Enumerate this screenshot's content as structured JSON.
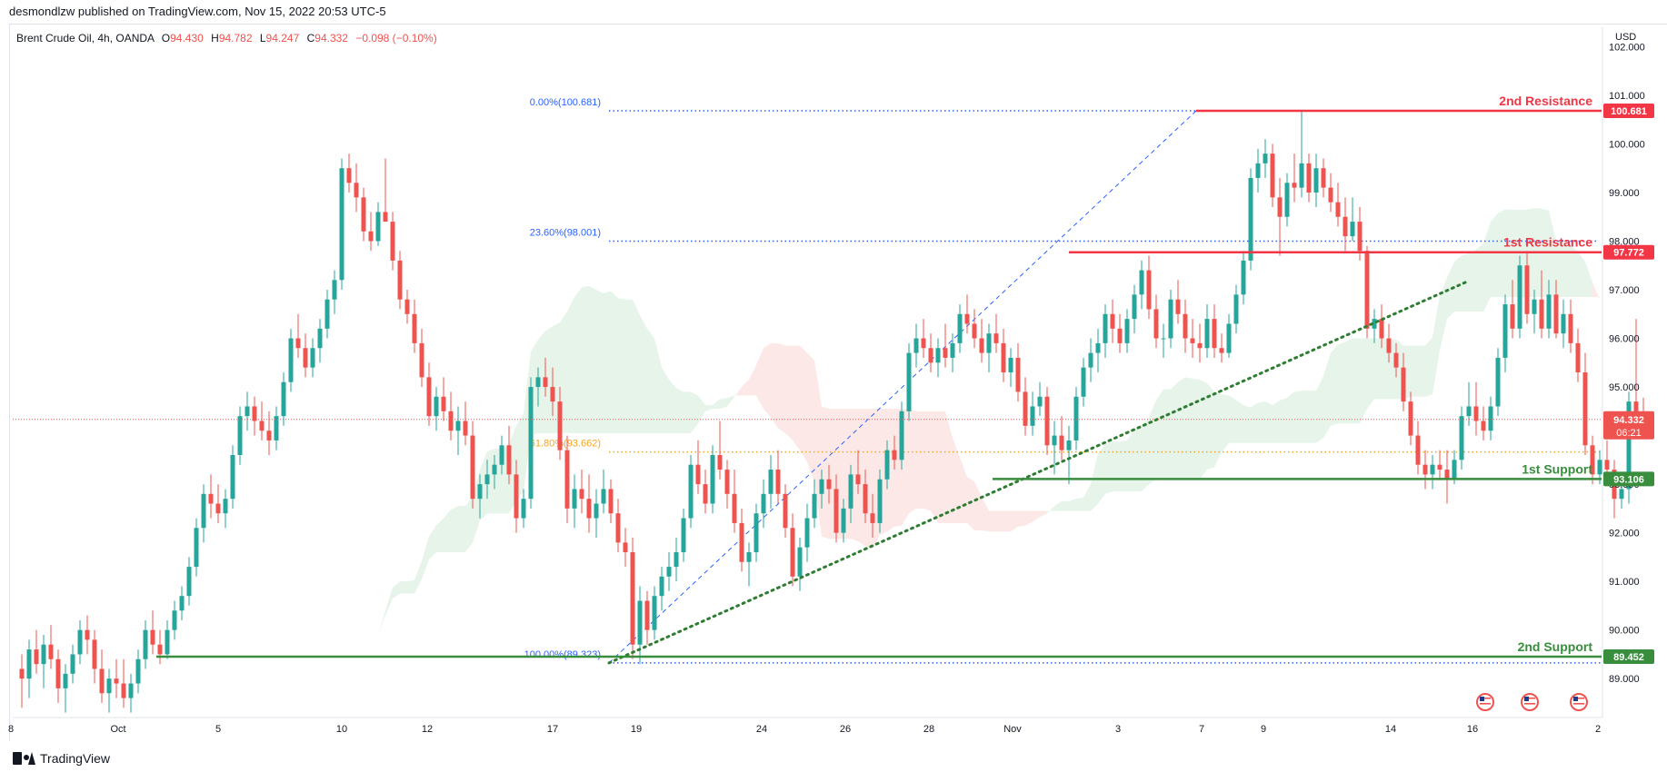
{
  "header": {
    "publisher": "desmondlzw published on TradingView.com, Nov 15, 2022 20:53 UTC-5"
  },
  "legend": {
    "symbol": "Brent Crude Oil, 4h, OANDA",
    "o_label": "O",
    "o": "94.430",
    "h_label": "H",
    "h": "94.782",
    "l_label": "L",
    "l": "94.247",
    "c_label": "C",
    "c": "94.332",
    "change": "−0.098 (−0.10%)"
  },
  "footer": {
    "brand": "TradingView"
  },
  "colors": {
    "up": "#26a69a",
    "down": "#ef5350",
    "resistance": "#f23645",
    "support": "#388e3c",
    "fib": "#2962ff",
    "fib_golden": "#f5a623",
    "trend": "#2e7d32",
    "cloud_green": "#e6f4ea",
    "cloud_red": "#fde8e8",
    "price_line": "#ef5350"
  },
  "chart_data": {
    "type": "candlestick",
    "currency": "USD",
    "ylim": [
      88.2,
      102.4
    ],
    "y_ticks": [
      "89.000",
      "90.000",
      "91.000",
      "92.000",
      "93.000",
      "94.000",
      "95.000",
      "96.000",
      "97.000",
      "98.000",
      "99.000",
      "100.000",
      "101.000",
      "102.000"
    ],
    "x_ticks": [
      "8",
      "Oct",
      "5",
      "10",
      "12",
      "17",
      "19",
      "24",
      "26",
      "28",
      "Nov",
      "3",
      "7",
      "9",
      "14",
      "16",
      "2"
    ],
    "current_price": "94.332",
    "countdown": "06:21",
    "levels": [
      {
        "name": "2nd Resistance",
        "value": 100.681,
        "label": "100.681",
        "kind": "resistance"
      },
      {
        "name": "1st Resistance",
        "value": 97.772,
        "label": "97.772",
        "kind": "resistance"
      },
      {
        "name": "1st Support",
        "value": 93.106,
        "label": "93.106",
        "kind": "support"
      },
      {
        "name": "2nd Support",
        "value": 89.452,
        "label": "89.452",
        "kind": "support"
      }
    ],
    "fib_levels": [
      {
        "label": "0.00%(100.681)",
        "value": 100.681
      },
      {
        "label": "23.60%(98.001)",
        "value": 98.001
      },
      {
        "label": "61.80%(93.662)",
        "value": 93.662
      },
      {
        "label": "100.00%(89.323)",
        "value": 89.323
      }
    ],
    "candles": [
      [
        89.2,
        89.5,
        88.4,
        89.0
      ],
      [
        89.0,
        89.8,
        88.6,
        89.6
      ],
      [
        89.6,
        90.0,
        89.1,
        89.3
      ],
      [
        89.3,
        89.9,
        88.8,
        89.7
      ],
      [
        89.7,
        90.1,
        89.2,
        89.4
      ],
      [
        89.4,
        89.6,
        88.5,
        88.8
      ],
      [
        88.8,
        89.3,
        88.3,
        89.1
      ],
      [
        89.1,
        89.7,
        88.9,
        89.5
      ],
      [
        89.5,
        90.2,
        89.3,
        90.0
      ],
      [
        90.0,
        90.3,
        89.5,
        89.8
      ],
      [
        89.8,
        90.0,
        88.9,
        89.2
      ],
      [
        89.2,
        89.6,
        88.5,
        88.7
      ],
      [
        88.7,
        89.2,
        88.3,
        89.0
      ],
      [
        89.0,
        89.4,
        88.6,
        88.9
      ],
      [
        88.9,
        89.4,
        88.4,
        88.6
      ],
      [
        88.6,
        89.1,
        88.3,
        88.9
      ],
      [
        88.9,
        89.6,
        88.7,
        89.4
      ],
      [
        89.4,
        90.2,
        89.2,
        90.0
      ],
      [
        90.0,
        90.4,
        89.5,
        89.7
      ],
      [
        89.7,
        90.0,
        89.3,
        89.5
      ],
      [
        89.5,
        90.2,
        89.4,
        90.0
      ],
      [
        90.0,
        90.6,
        89.8,
        90.4
      ],
      [
        90.4,
        90.9,
        90.2,
        90.7
      ],
      [
        90.7,
        91.5,
        90.5,
        91.3
      ],
      [
        91.3,
        92.3,
        91.1,
        92.1
      ],
      [
        92.1,
        93.0,
        91.8,
        92.8
      ],
      [
        92.8,
        93.2,
        92.3,
        92.6
      ],
      [
        92.6,
        93.0,
        92.2,
        92.4
      ],
      [
        92.4,
        92.9,
        92.1,
        92.7
      ],
      [
        92.7,
        93.8,
        92.5,
        93.6
      ],
      [
        93.6,
        94.6,
        93.4,
        94.4
      ],
      [
        94.4,
        94.9,
        94.1,
        94.6
      ],
      [
        94.6,
        94.8,
        94.0,
        94.3
      ],
      [
        94.3,
        94.7,
        93.9,
        94.1
      ],
      [
        94.1,
        94.5,
        93.6,
        93.9
      ],
      [
        93.9,
        94.6,
        93.7,
        94.4
      ],
      [
        94.4,
        95.3,
        94.2,
        95.1
      ],
      [
        95.1,
        96.2,
        94.9,
        96.0
      ],
      [
        96.0,
        96.5,
        95.6,
        95.8
      ],
      [
        95.8,
        96.1,
        95.2,
        95.4
      ],
      [
        95.4,
        96.0,
        95.2,
        95.8
      ],
      [
        95.8,
        96.4,
        95.5,
        96.2
      ],
      [
        96.2,
        97.0,
        96.0,
        96.8
      ],
      [
        96.8,
        97.4,
        96.5,
        97.2
      ],
      [
        97.2,
        99.7,
        97.0,
        99.5
      ],
      [
        99.5,
        99.8,
        99.0,
        99.2
      ],
      [
        99.2,
        99.6,
        98.6,
        98.9
      ],
      [
        98.9,
        99.1,
        98.0,
        98.2
      ],
      [
        98.2,
        98.6,
        97.8,
        98.0
      ],
      [
        98.0,
        98.8,
        97.9,
        98.6
      ],
      [
        98.6,
        99.7,
        98.4,
        98.4
      ],
      [
        98.4,
        98.6,
        97.4,
        97.6
      ],
      [
        97.6,
        97.8,
        96.6,
        96.8
      ],
      [
        96.8,
        97.0,
        96.3,
        96.5
      ],
      [
        96.5,
        96.8,
        95.7,
        95.9
      ],
      [
        95.9,
        96.2,
        95.0,
        95.2
      ],
      [
        95.2,
        95.5,
        94.2,
        94.4
      ],
      [
        94.4,
        95.0,
        94.1,
        94.8
      ],
      [
        94.8,
        95.2,
        94.3,
        94.5
      ],
      [
        94.5,
        94.9,
        93.9,
        94.1
      ],
      [
        94.1,
        94.6,
        93.6,
        94.3
      ],
      [
        94.3,
        94.7,
        93.8,
        94.0
      ],
      [
        94.0,
        94.3,
        92.5,
        92.7
      ],
      [
        92.7,
        93.2,
        92.3,
        93.0
      ],
      [
        93.0,
        93.5,
        92.7,
        93.2
      ],
      [
        93.2,
        93.6,
        92.9,
        93.4
      ],
      [
        93.4,
        94.0,
        93.2,
        93.8
      ],
      [
        93.8,
        94.2,
        93.0,
        93.2
      ],
      [
        93.2,
        93.5,
        92.0,
        92.3
      ],
      [
        92.3,
        92.9,
        92.1,
        92.7
      ],
      [
        92.7,
        95.2,
        92.5,
        95.0
      ],
      [
        95.0,
        95.4,
        94.6,
        95.2
      ],
      [
        95.2,
        95.6,
        94.8,
        95.0
      ],
      [
        95.0,
        95.4,
        94.4,
        94.7
      ],
      [
        94.7,
        95.0,
        93.5,
        93.7
      ],
      [
        93.7,
        94.0,
        92.2,
        92.5
      ],
      [
        92.5,
        93.2,
        92.1,
        92.9
      ],
      [
        92.9,
        93.3,
        92.4,
        92.7
      ],
      [
        92.7,
        93.2,
        92.0,
        92.3
      ],
      [
        92.3,
        92.9,
        91.9,
        92.6
      ],
      [
        92.6,
        93.3,
        92.4,
        92.9
      ],
      [
        92.9,
        93.1,
        92.2,
        92.4
      ],
      [
        92.4,
        92.7,
        91.6,
        91.8
      ],
      [
        91.8,
        92.1,
        91.3,
        91.6
      ],
      [
        91.6,
        91.9,
        89.4,
        89.7
      ],
      [
        89.7,
        90.9,
        89.3,
        90.6
      ],
      [
        90.6,
        90.8,
        89.7,
        90.0
      ],
      [
        90.0,
        90.9,
        89.8,
        90.7
      ],
      [
        90.7,
        91.3,
        90.4,
        91.1
      ],
      [
        91.1,
        91.6,
        90.8,
        91.3
      ],
      [
        91.3,
        91.9,
        91.0,
        91.6
      ],
      [
        91.6,
        92.5,
        91.4,
        92.3
      ],
      [
        92.3,
        93.6,
        92.1,
        93.4
      ],
      [
        93.4,
        93.9,
        92.8,
        93.0
      ],
      [
        93.0,
        93.3,
        92.4,
        92.6
      ],
      [
        92.6,
        93.8,
        92.4,
        93.6
      ],
      [
        93.6,
        94.3,
        93.1,
        93.3
      ],
      [
        93.3,
        93.5,
        92.5,
        92.8
      ],
      [
        92.8,
        93.3,
        92.0,
        92.2
      ],
      [
        92.2,
        92.5,
        91.2,
        91.4
      ],
      [
        91.4,
        91.8,
        90.9,
        91.6
      ],
      [
        91.6,
        92.6,
        91.4,
        92.4
      ],
      [
        92.4,
        93.1,
        92.1,
        92.8
      ],
      [
        92.8,
        93.6,
        92.5,
        93.3
      ],
      [
        93.3,
        93.7,
        92.6,
        92.8
      ],
      [
        92.8,
        93.0,
        91.9,
        92.1
      ],
      [
        92.1,
        92.4,
        90.9,
        91.1
      ],
      [
        91.1,
        91.9,
        90.8,
        91.7
      ],
      [
        91.7,
        92.6,
        91.4,
        92.3
      ],
      [
        92.3,
        93.1,
        92.1,
        92.8
      ],
      [
        92.8,
        93.3,
        92.5,
        93.1
      ],
      [
        93.1,
        93.4,
        92.6,
        92.9
      ],
      [
        92.9,
        93.2,
        91.8,
        92.0
      ],
      [
        92.0,
        92.7,
        91.8,
        92.5
      ],
      [
        92.5,
        93.4,
        92.2,
        93.2
      ],
      [
        93.2,
        93.7,
        92.8,
        93.0
      ],
      [
        93.0,
        93.3,
        92.2,
        92.4
      ],
      [
        92.4,
        92.8,
        91.9,
        92.2
      ],
      [
        92.2,
        93.3,
        92.0,
        93.1
      ],
      [
        93.1,
        93.9,
        92.9,
        93.7
      ],
      [
        93.7,
        94.0,
        93.3,
        93.5
      ],
      [
        93.5,
        94.7,
        93.3,
        94.5
      ],
      [
        94.5,
        95.9,
        94.3,
        95.7
      ],
      [
        95.7,
        96.3,
        95.4,
        96.0
      ],
      [
        96.0,
        96.4,
        95.6,
        95.8
      ],
      [
        95.8,
        96.1,
        95.3,
        95.5
      ],
      [
        95.5,
        96.0,
        95.2,
        95.8
      ],
      [
        95.8,
        96.3,
        95.4,
        95.6
      ],
      [
        95.6,
        96.1,
        95.3,
        95.9
      ],
      [
        95.9,
        96.7,
        95.7,
        96.5
      ],
      [
        96.5,
        96.9,
        96.1,
        96.3
      ],
      [
        96.3,
        96.6,
        95.8,
        96.0
      ],
      [
        96.0,
        96.4,
        95.5,
        95.7
      ],
      [
        95.7,
        96.3,
        95.3,
        96.1
      ],
      [
        96.1,
        96.5,
        95.7,
        95.9
      ],
      [
        95.9,
        96.2,
        95.1,
        95.3
      ],
      [
        95.3,
        95.8,
        95.0,
        95.6
      ],
      [
        95.6,
        95.9,
        94.7,
        94.9
      ],
      [
        94.9,
        95.2,
        94.0,
        94.2
      ],
      [
        94.2,
        94.9,
        94.0,
        94.6
      ],
      [
        94.6,
        95.1,
        94.4,
        94.8
      ],
      [
        94.8,
        95.0,
        93.6,
        93.8
      ],
      [
        93.8,
        94.3,
        93.2,
        94.0
      ],
      [
        94.0,
        94.4,
        93.5,
        93.7
      ],
      [
        93.7,
        94.2,
        93.0,
        93.9
      ],
      [
        93.9,
        95.0,
        93.7,
        94.8
      ],
      [
        94.8,
        95.6,
        94.6,
        95.4
      ],
      [
        95.4,
        96.0,
        95.1,
        95.7
      ],
      [
        95.7,
        96.2,
        95.3,
        95.9
      ],
      [
        95.9,
        96.7,
        95.6,
        96.5
      ],
      [
        96.5,
        96.8,
        95.9,
        96.2
      ],
      [
        96.2,
        96.5,
        95.7,
        95.9
      ],
      [
        95.9,
        96.6,
        95.7,
        96.4
      ],
      [
        96.4,
        97.1,
        96.1,
        96.9
      ],
      [
        96.9,
        97.6,
        96.6,
        97.4
      ],
      [
        97.4,
        97.7,
        96.4,
        96.6
      ],
      [
        96.6,
        96.9,
        95.8,
        96.0
      ],
      [
        96.0,
        96.3,
        95.6,
        96.0
      ],
      [
        96.0,
        97.0,
        95.8,
        96.8
      ],
      [
        96.8,
        97.2,
        96.3,
        96.5
      ],
      [
        96.5,
        96.8,
        95.7,
        96.0
      ],
      [
        96.0,
        96.4,
        95.6,
        95.9
      ],
      [
        95.9,
        96.3,
        95.5,
        95.8
      ],
      [
        95.8,
        96.7,
        95.6,
        96.4
      ],
      [
        96.4,
        96.7,
        95.6,
        95.8
      ],
      [
        95.8,
        96.1,
        95.5,
        95.7
      ],
      [
        95.7,
        96.5,
        95.6,
        96.3
      ],
      [
        96.3,
        97.1,
        96.1,
        96.9
      ],
      [
        96.9,
        97.8,
        96.7,
        97.6
      ],
      [
        97.6,
        99.5,
        97.4,
        99.3
      ],
      [
        99.3,
        99.9,
        99.0,
        99.6
      ],
      [
        99.6,
        100.1,
        99.3,
        99.8
      ],
      [
        99.8,
        100.0,
        98.7,
        98.9
      ],
      [
        98.9,
        99.3,
        97.7,
        98.5
      ],
      [
        98.5,
        99.4,
        98.3,
        99.2
      ],
      [
        99.2,
        99.8,
        98.8,
        99.1
      ],
      [
        99.1,
        100.7,
        98.9,
        99.6
      ],
      [
        99.6,
        99.8,
        98.8,
        99.0
      ],
      [
        99.0,
        99.8,
        98.7,
        99.5
      ],
      [
        99.5,
        99.7,
        98.9,
        99.1
      ],
      [
        99.1,
        99.4,
        98.6,
        98.8
      ],
      [
        98.8,
        99.2,
        98.3,
        98.5
      ],
      [
        98.5,
        98.9,
        97.8,
        98.1
      ],
      [
        98.1,
        98.9,
        98.0,
        98.4
      ],
      [
        98.4,
        98.7,
        97.6,
        97.8
      ],
      [
        97.8,
        97.9,
        96.0,
        96.2
      ],
      [
        96.2,
        96.6,
        95.9,
        96.4
      ],
      [
        96.4,
        96.7,
        95.8,
        96.0
      ],
      [
        96.0,
        96.3,
        95.5,
        95.7
      ],
      [
        95.7,
        95.9,
        95.2,
        95.4
      ],
      [
        95.4,
        95.7,
        94.5,
        94.7
      ],
      [
        94.7,
        94.9,
        93.8,
        94.0
      ],
      [
        94.0,
        94.3,
        93.2,
        93.4
      ],
      [
        93.4,
        93.7,
        92.9,
        93.2
      ],
      [
        93.2,
        93.6,
        92.9,
        93.4
      ],
      [
        93.4,
        93.7,
        93.1,
        93.3
      ],
      [
        93.3,
        93.7,
        92.6,
        93.1
      ],
      [
        93.1,
        93.7,
        93.0,
        93.5
      ],
      [
        93.5,
        94.6,
        93.3,
        94.4
      ],
      [
        94.4,
        95.1,
        94.2,
        94.6
      ],
      [
        94.6,
        95.1,
        94.0,
        94.3
      ],
      [
        94.3,
        94.6,
        93.9,
        94.1
      ],
      [
        94.1,
        94.8,
        93.9,
        94.6
      ],
      [
        94.6,
        95.8,
        94.4,
        95.6
      ],
      [
        95.6,
        96.9,
        95.3,
        96.7
      ],
      [
        96.7,
        97.2,
        96.0,
        96.2
      ],
      [
        96.2,
        97.7,
        96.0,
        97.5
      ],
      [
        97.5,
        97.8,
        96.3,
        96.5
      ],
      [
        96.5,
        97.0,
        96.1,
        96.8
      ],
      [
        96.8,
        97.4,
        96.0,
        96.2
      ],
      [
        96.2,
        97.2,
        96.0,
        96.9
      ],
      [
        96.9,
        97.2,
        96.0,
        96.1
      ],
      [
        96.1,
        96.8,
        95.8,
        96.5
      ],
      [
        96.5,
        96.8,
        95.7,
        95.9
      ],
      [
        95.9,
        96.2,
        95.1,
        95.3
      ],
      [
        95.3,
        95.7,
        93.6,
        93.8
      ],
      [
        93.8,
        94.0,
        93.0,
        93.2
      ],
      [
        93.2,
        93.7,
        93.0,
        93.5
      ],
      [
        93.5,
        93.9,
        93.1,
        93.3
      ],
      [
        93.3,
        93.5,
        92.3,
        92.7
      ],
      [
        92.7,
        93.1,
        92.5,
        92.9
      ],
      [
        92.9,
        94.9,
        92.6,
        94.7
      ],
      [
        94.7,
        96.4,
        94.1,
        94.4
      ],
      [
        94.43,
        94.78,
        94.25,
        94.33
      ]
    ]
  }
}
